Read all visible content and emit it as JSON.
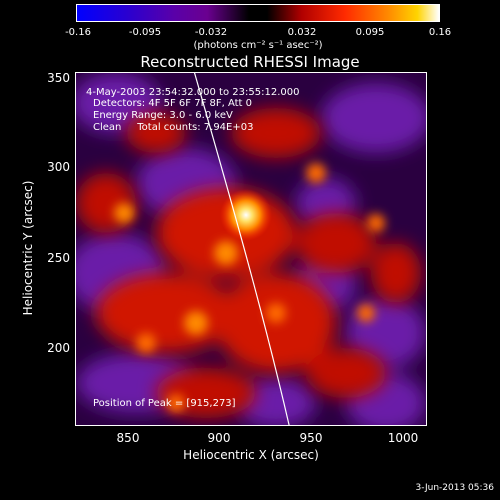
{
  "colorbar": {
    "ticks": [
      "-0.16",
      "-0.095",
      "-0.032",
      "0.032",
      "0.095",
      "0.16"
    ],
    "units_label": "(photons cm⁻² s⁻¹ asec⁻²)"
  },
  "plot": {
    "title": "Reconstructed RHESSI Image",
    "xlabel": "Heliocentric X (arcsec)",
    "ylabel": "Heliocentric Y (arcsec)",
    "xticks": [
      "850",
      "900",
      "950",
      "1000"
    ],
    "yticks": [
      "350",
      "300",
      "250",
      "200"
    ]
  },
  "info": {
    "time_range": "4-May-2003 23:54:32.000 to 23:55:12.000",
    "detectors": "Detectors: 4F 5F 6F 7F 8F, Att 0",
    "energy": "Energy Range: 3.0 - 6.0 keV",
    "clean": "Clean     Total counts: 7.94E+03",
    "peak": "Position of Peak = [915,273]"
  },
  "timestamp": "3-Jun-2013 05:36",
  "colors": {
    "negative": "#5a00a8",
    "positive": "#ff2a00",
    "peak": "#ffffff"
  }
}
